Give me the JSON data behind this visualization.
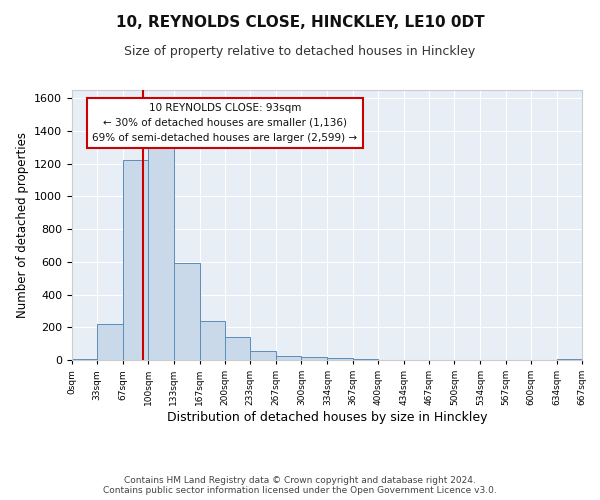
{
  "title": "10, REYNOLDS CLOSE, HINCKLEY, LE10 0DT",
  "subtitle": "Size of property relative to detached houses in Hinckley",
  "xlabel": "Distribution of detached houses by size in Hinckley",
  "ylabel": "Number of detached properties",
  "bin_edges": [
    0,
    33,
    67,
    100,
    133,
    167,
    200,
    233,
    267,
    300,
    334,
    367,
    400,
    434,
    467,
    500,
    534,
    567,
    600,
    634,
    667
  ],
  "bin_counts": [
    5,
    220,
    1220,
    1295,
    590,
    240,
    140,
    55,
    25,
    20,
    10,
    5,
    0,
    0,
    0,
    0,
    0,
    0,
    0,
    5
  ],
  "bar_color": "#c9d9ea",
  "bar_edge_color": "#5b8db8",
  "property_line_x": 93,
  "property_line_color": "#cc0000",
  "ylim": [
    0,
    1650
  ],
  "yticks": [
    0,
    200,
    400,
    600,
    800,
    1000,
    1200,
    1400,
    1600
  ],
  "annotation_title": "10 REYNOLDS CLOSE: 93sqm",
  "annotation_line1": "← 30% of detached houses are smaller (1,136)",
  "annotation_line2": "69% of semi-detached houses are larger (2,599) →",
  "annotation_box_color": "#ffffff",
  "annotation_box_edge_color": "#cc0000",
  "footer_line1": "Contains HM Land Registry data © Crown copyright and database right 2024.",
  "footer_line2": "Contains public sector information licensed under the Open Government Licence v3.0.",
  "background_color": "#e8eef5",
  "tick_labels": [
    "0sqm",
    "33sqm",
    "67sqm",
    "100sqm",
    "133sqm",
    "167sqm",
    "200sqm",
    "233sqm",
    "267sqm",
    "300sqm",
    "334sqm",
    "367sqm",
    "400sqm",
    "434sqm",
    "467sqm",
    "500sqm",
    "534sqm",
    "567sqm",
    "600sqm",
    "634sqm",
    "667sqm"
  ],
  "grid_color": "#d0d8e0"
}
